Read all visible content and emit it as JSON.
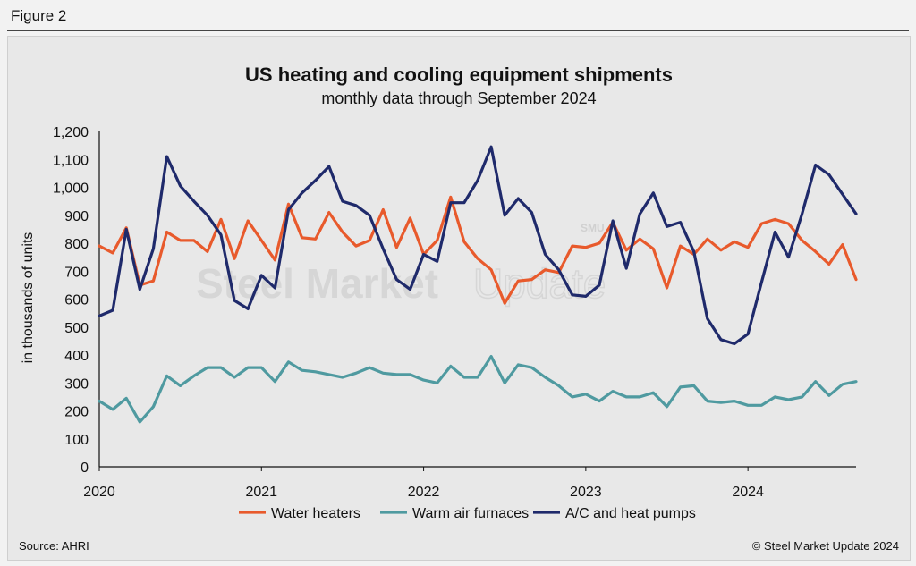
{
  "figure_label": "Figure 2",
  "source": "Source: AHRI",
  "copyright": "© Steel Market Update 2024",
  "watermark": {
    "word1": "Steel Market",
    "word2": "Update",
    "logo": "SMU"
  },
  "chart_data": {
    "type": "line",
    "title": "US heating and cooling equipment shipments",
    "subtitle": "monthly data through September 2024",
    "xlabel": "",
    "ylabel": "in thousands of units",
    "ylim": [
      0,
      1200
    ],
    "yticks": [
      0,
      100,
      200,
      300,
      400,
      500,
      600,
      700,
      800,
      900,
      1000,
      1100,
      1200
    ],
    "ytick_labels": [
      "0",
      "100",
      "200",
      "300",
      "400",
      "500",
      "600",
      "700",
      "800",
      "900",
      "1,000",
      "1,100",
      "1,200"
    ],
    "xlim": [
      "2020-01",
      "2024-09"
    ],
    "xticks": [
      {
        "month_index": 0,
        "label": "2020"
      },
      {
        "month_index": 12,
        "label": "2021"
      },
      {
        "month_index": 24,
        "label": "2022"
      },
      {
        "month_index": 36,
        "label": "2023"
      },
      {
        "month_index": 48,
        "label": "2024"
      }
    ],
    "grid": false,
    "legend_position": "bottom",
    "series": [
      {
        "name": "Water heaters",
        "color": "#e85a2c",
        "values": [
          790,
          765,
          855,
          650,
          665,
          840,
          810,
          810,
          770,
          885,
          745,
          880,
          810,
          740,
          940,
          820,
          815,
          910,
          840,
          790,
          810,
          920,
          785,
          890,
          760,
          810,
          965,
          805,
          745,
          705,
          585,
          665,
          670,
          705,
          695,
          790,
          785,
          800,
          875,
          775,
          815,
          780,
          640,
          790,
          760,
          815,
          775,
          805,
          785,
          870,
          885,
          870,
          810,
          770,
          725,
          795,
          670
        ]
      },
      {
        "name": "Warm air furnaces",
        "color": "#4f9aa0",
        "values": [
          235,
          205,
          245,
          160,
          215,
          325,
          290,
          325,
          355,
          355,
          320,
          355,
          355,
          305,
          375,
          345,
          340,
          330,
          320,
          335,
          355,
          335,
          330,
          330,
          310,
          300,
          360,
          320,
          320,
          395,
          300,
          365,
          355,
          320,
          290,
          250,
          260,
          235,
          270,
          250,
          250,
          265,
          215,
          285,
          290,
          235,
          230,
          235,
          220,
          220,
          250,
          240,
          250,
          305,
          255,
          295,
          305
        ]
      },
      {
        "name": "A/C and heat pumps",
        "color": "#1f2a6b",
        "values": [
          540,
          560,
          850,
          635,
          780,
          1110,
          1005,
          950,
          900,
          830,
          595,
          565,
          685,
          640,
          920,
          980,
          1025,
          1075,
          950,
          935,
          900,
          780,
          670,
          635,
          760,
          735,
          945,
          945,
          1025,
          1145,
          900,
          960,
          910,
          760,
          705,
          615,
          610,
          650,
          880,
          710,
          905,
          980,
          860,
          875,
          770,
          530,
          455,
          440,
          475,
          660,
          840,
          750,
          905,
          1080,
          1045,
          975,
          905
        ]
      }
    ]
  }
}
